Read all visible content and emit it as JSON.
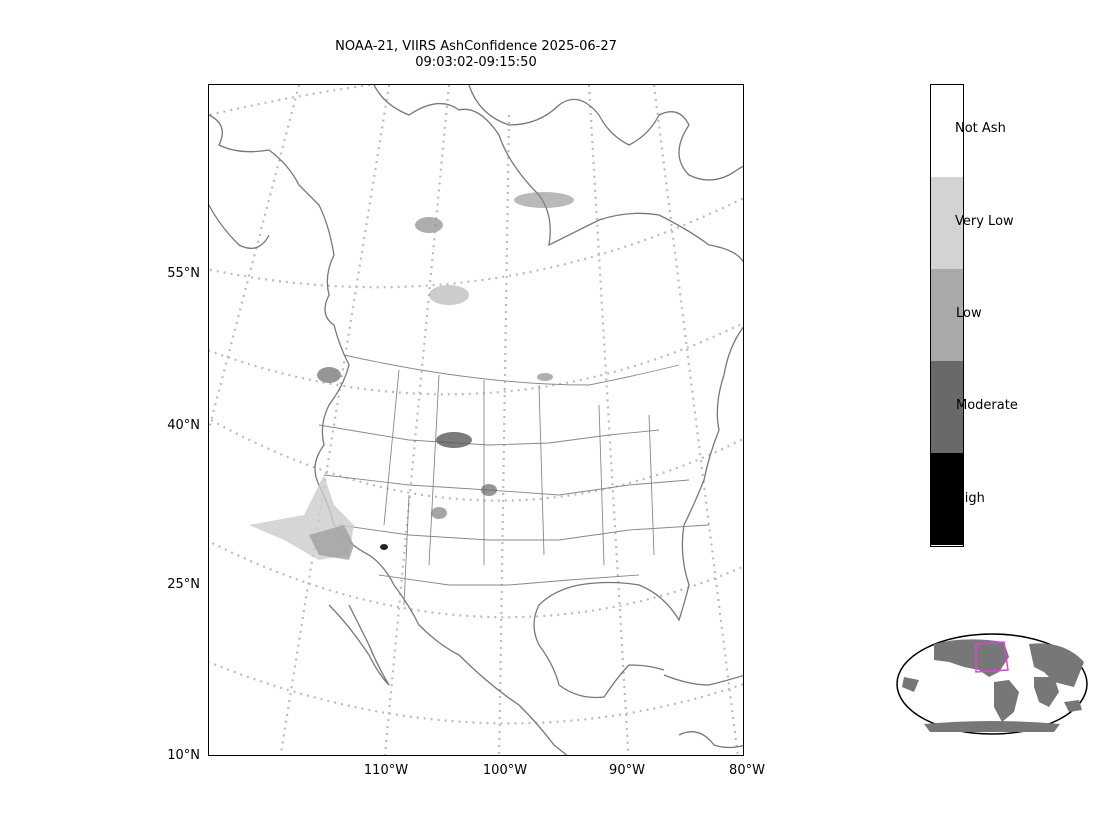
{
  "title": {
    "line1": "NOAA-21, VIIRS AshConfidence 2025-06-27",
    "line2": "09:03:02-09:15:50"
  },
  "map": {
    "lat_labels": [
      "55°N",
      "40°N",
      "25°N",
      "10°N"
    ],
    "lon_labels": [
      "110°W",
      "100°W",
      "90°W",
      "80°W"
    ],
    "graticule_style": "dotted-gray",
    "coastline_color": "#777777"
  },
  "colorbar": {
    "categories": [
      {
        "label": "Not Ash",
        "color": "#ffffff"
      },
      {
        "label": "Very Low",
        "color": "#d3d3d3"
      },
      {
        "label": "Low",
        "color": "#a9a9a9"
      },
      {
        "label": "Moderate",
        "color": "#696969"
      },
      {
        "label": "High",
        "color": "#000000"
      }
    ]
  },
  "inset": {
    "land_color": "#777777",
    "region_box_color": "#e040e0"
  }
}
